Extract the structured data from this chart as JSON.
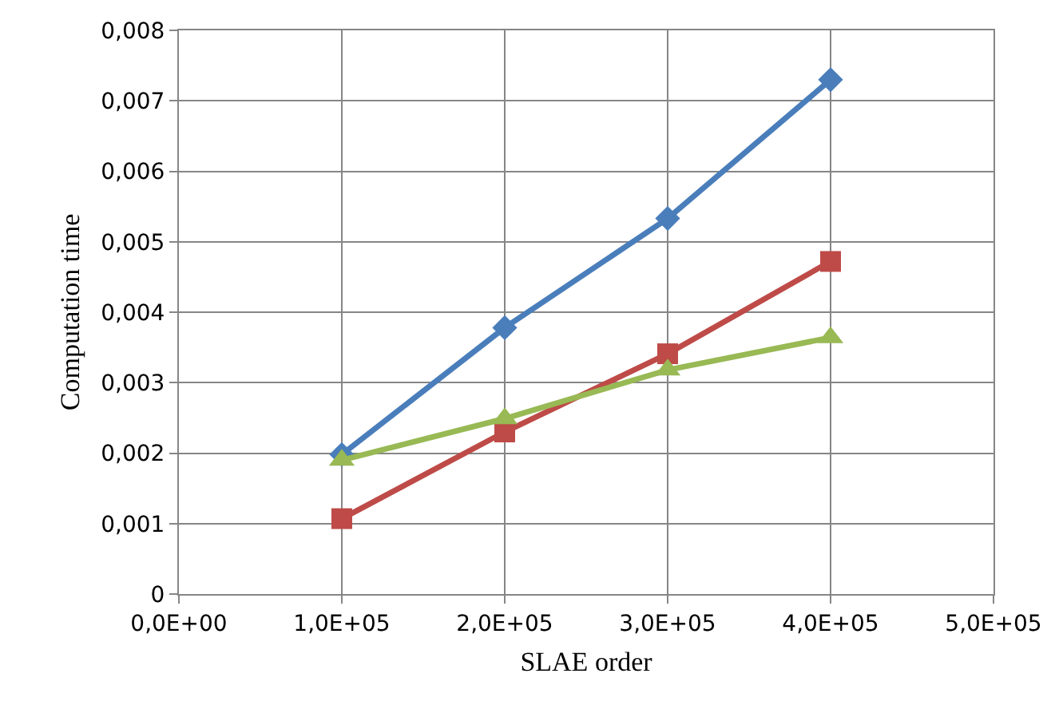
{
  "chart_data": {
    "type": "line",
    "xlabel": "SLAE order",
    "ylabel": "Computation time",
    "categories": [
      "0,0E+00",
      "1,0E+05",
      "2,0E+05",
      "3,0E+05",
      "4,0E+05",
      "5,0E+05"
    ],
    "series": [
      {
        "color": "#4a7ebb",
        "marker": "diamond",
        "values": [
          null,
          0.00198,
          0.00378,
          0.00533,
          0.0073,
          null
        ]
      },
      {
        "color": "#be4b48",
        "marker": "square",
        "values": [
          null,
          0.00107,
          0.0023,
          0.00341,
          0.00472,
          null
        ]
      },
      {
        "color": "#98b954",
        "marker": "triangle",
        "values": [
          null,
          0.0019,
          0.00249,
          0.00318,
          0.00364,
          null
        ]
      }
    ],
    "ylim": [
      0,
      0.008
    ],
    "yticks": [
      0,
      {
        "value": 0.001,
        "label": "0,001"
      },
      {
        "value": 0.002,
        "label": "0,002"
      },
      {
        "value": 0.003,
        "label": "0,003"
      },
      {
        "value": 0.004,
        "label": "0,004"
      },
      {
        "value": 0.005,
        "label": "0,005"
      },
      {
        "value": 0.006,
        "label": "0,006"
      },
      {
        "value": 0.007,
        "label": "0,007"
      },
      {
        "value": 0.008,
        "label": "0,008"
      }
    ],
    "grid": true,
    "line_style": "solid"
  }
}
